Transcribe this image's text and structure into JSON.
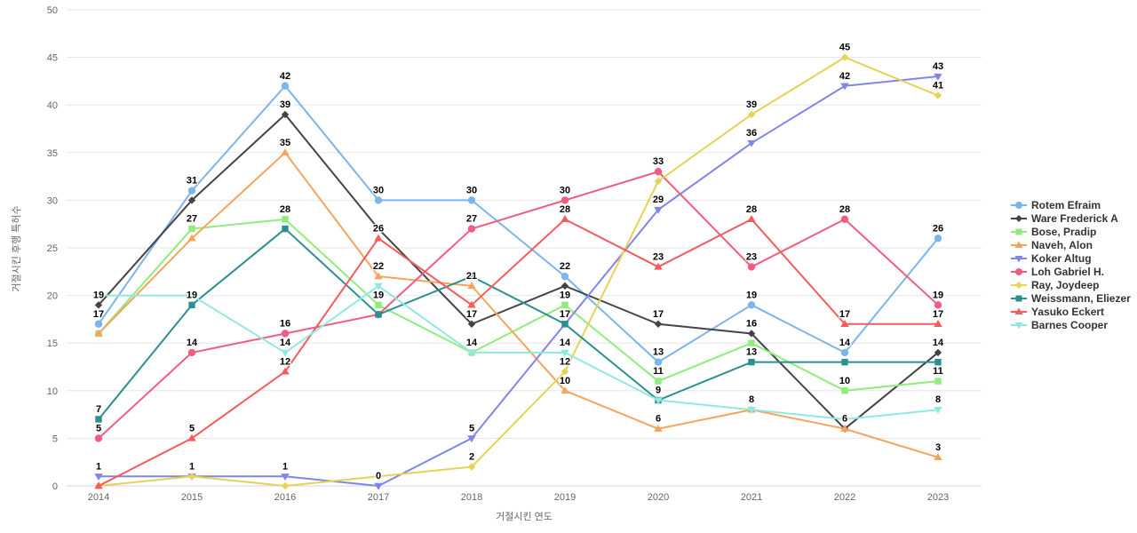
{
  "chart_data": {
    "type": "line",
    "title": "",
    "xlabel": "거절시킨 연도",
    "ylabel": "거절시킨 후행 특허수",
    "x_categories": [
      "2014",
      "2015",
      "2016",
      "2017",
      "2018",
      "2019",
      "2020",
      "2021",
      "2022",
      "2023"
    ],
    "ylim": [
      0,
      50
    ],
    "y_ticks": [
      0,
      5,
      10,
      15,
      20,
      25,
      30,
      35,
      40,
      45,
      50
    ],
    "grid": true,
    "legend_position": "right",
    "styles": {
      "grid_color": "#e6e6e6",
      "axis_line_color": "#ccd6eb",
      "tick_text_color": "#666666",
      "data_label_color": "#000000",
      "legend_text_color": "#333333",
      "background": "#ffffff"
    },
    "series": [
      {
        "name": "Rotem Efraim",
        "color": "#7cb5ec",
        "marker": "circle",
        "values": [
          17,
          31,
          42,
          30,
          30,
          22,
          13,
          19,
          14,
          26
        ],
        "labels_shown": [
          1,
          1,
          1,
          1,
          1,
          1,
          1,
          1,
          1,
          1
        ]
      },
      {
        "name": "Ware Frederick A",
        "color": "#434348",
        "marker": "diamond",
        "values": [
          19,
          30,
          39,
          27,
          17,
          21,
          17,
          16,
          6,
          14
        ],
        "labels_shown": [
          1,
          0,
          1,
          0,
          1,
          0,
          1,
          1,
          1,
          1
        ]
      },
      {
        "name": "Bose, Pradip",
        "color": "#90ed7d",
        "marker": "square",
        "values": [
          16,
          27,
          28,
          19,
          14,
          19,
          11,
          15,
          10,
          11
        ],
        "labels_shown": [
          0,
          1,
          1,
          1,
          1,
          1,
          1,
          0,
          1,
          1
        ]
      },
      {
        "name": "Naveh, Alon",
        "color": "#f7a35c",
        "marker": "triangle",
        "values": [
          16,
          26,
          35,
          22,
          21,
          10,
          6,
          8,
          6,
          3
        ],
        "labels_shown": [
          0,
          0,
          1,
          1,
          1,
          1,
          1,
          1,
          0,
          1
        ]
      },
      {
        "name": "Koker Altug",
        "color": "#8085e9",
        "marker": "triangle-down",
        "values": [
          1,
          1,
          1,
          0,
          5,
          17,
          29,
          36,
          42,
          43
        ],
        "labels_shown": [
          1,
          1,
          1,
          1,
          1,
          0,
          1,
          1,
          1,
          1
        ]
      },
      {
        "name": "Loh Gabriel H.",
        "color": "#f15c80",
        "marker": "circle",
        "values": [
          5,
          14,
          16,
          18,
          27,
          30,
          33,
          23,
          28,
          19
        ],
        "labels_shown": [
          1,
          1,
          1,
          0,
          1,
          1,
          1,
          1,
          1,
          1
        ]
      },
      {
        "name": "Ray, Joydeep",
        "color": "#e4d354",
        "marker": "diamond",
        "values": [
          0,
          1,
          0,
          1,
          2,
          12,
          32,
          39,
          45,
          41
        ],
        "labels_shown": [
          0,
          0,
          0,
          0,
          1,
          1,
          0,
          1,
          1,
          1
        ]
      },
      {
        "name": "Weissmann, Eliezer",
        "color": "#2b908f",
        "marker": "square",
        "values": [
          7,
          19,
          27,
          18,
          22,
          17,
          9,
          13,
          13,
          13
        ],
        "labels_shown": [
          1,
          1,
          0,
          0,
          0,
          1,
          1,
          1,
          0,
          0
        ]
      },
      {
        "name": "Yasuko Eckert",
        "color": "#f45b5b",
        "marker": "triangle",
        "values": [
          0,
          5,
          12,
          26,
          19,
          28,
          23,
          28,
          17,
          17
        ],
        "labels_shown": [
          0,
          1,
          1,
          1,
          0,
          1,
          1,
          1,
          1,
          1
        ]
      },
      {
        "name": "Barnes Cooper",
        "color": "#91e8e1",
        "marker": "triangle-down",
        "values": [
          20,
          20,
          14,
          21,
          14,
          14,
          9,
          8,
          7,
          8
        ],
        "labels_shown": [
          0,
          0,
          1,
          0,
          0,
          1,
          0,
          0,
          0,
          1
        ]
      }
    ]
  }
}
